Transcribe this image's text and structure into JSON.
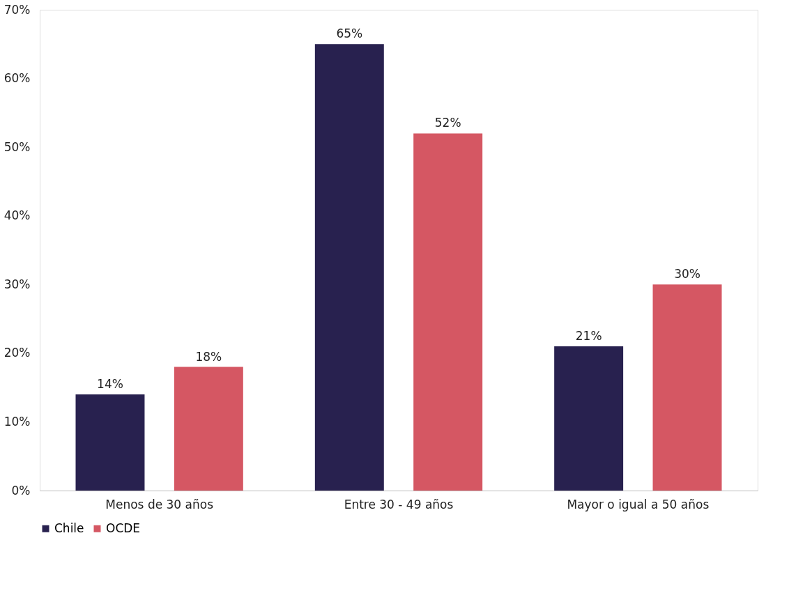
{
  "chart_data": {
    "type": "bar",
    "categories": [
      "Menos de 30 años",
      "Entre 30 - 49 años",
      "Mayor o igual a 50 años"
    ],
    "series": [
      {
        "name": "Chile",
        "color": "#28214f",
        "values": [
          14,
          65,
          21
        ],
        "value_labels": [
          "14%",
          "65%",
          "21%"
        ]
      },
      {
        "name": "OCDE",
        "color": "#d55763",
        "values": [
          18,
          52,
          30
        ],
        "value_labels": [
          "18%",
          "52%",
          "30%"
        ]
      }
    ],
    "ylim": [
      0,
      70
    ],
    "yticks": [
      {
        "value": 0,
        "label": "0%"
      },
      {
        "value": 10,
        "label": "10%"
      },
      {
        "value": 20,
        "label": "20%"
      },
      {
        "value": 30,
        "label": "30%"
      },
      {
        "value": 40,
        "label": "40%"
      },
      {
        "value": 50,
        "label": "50%"
      },
      {
        "value": 60,
        "label": "60%"
      },
      {
        "value": 70,
        "label": "70%"
      }
    ],
    "grid": false,
    "legend": "bottom"
  }
}
